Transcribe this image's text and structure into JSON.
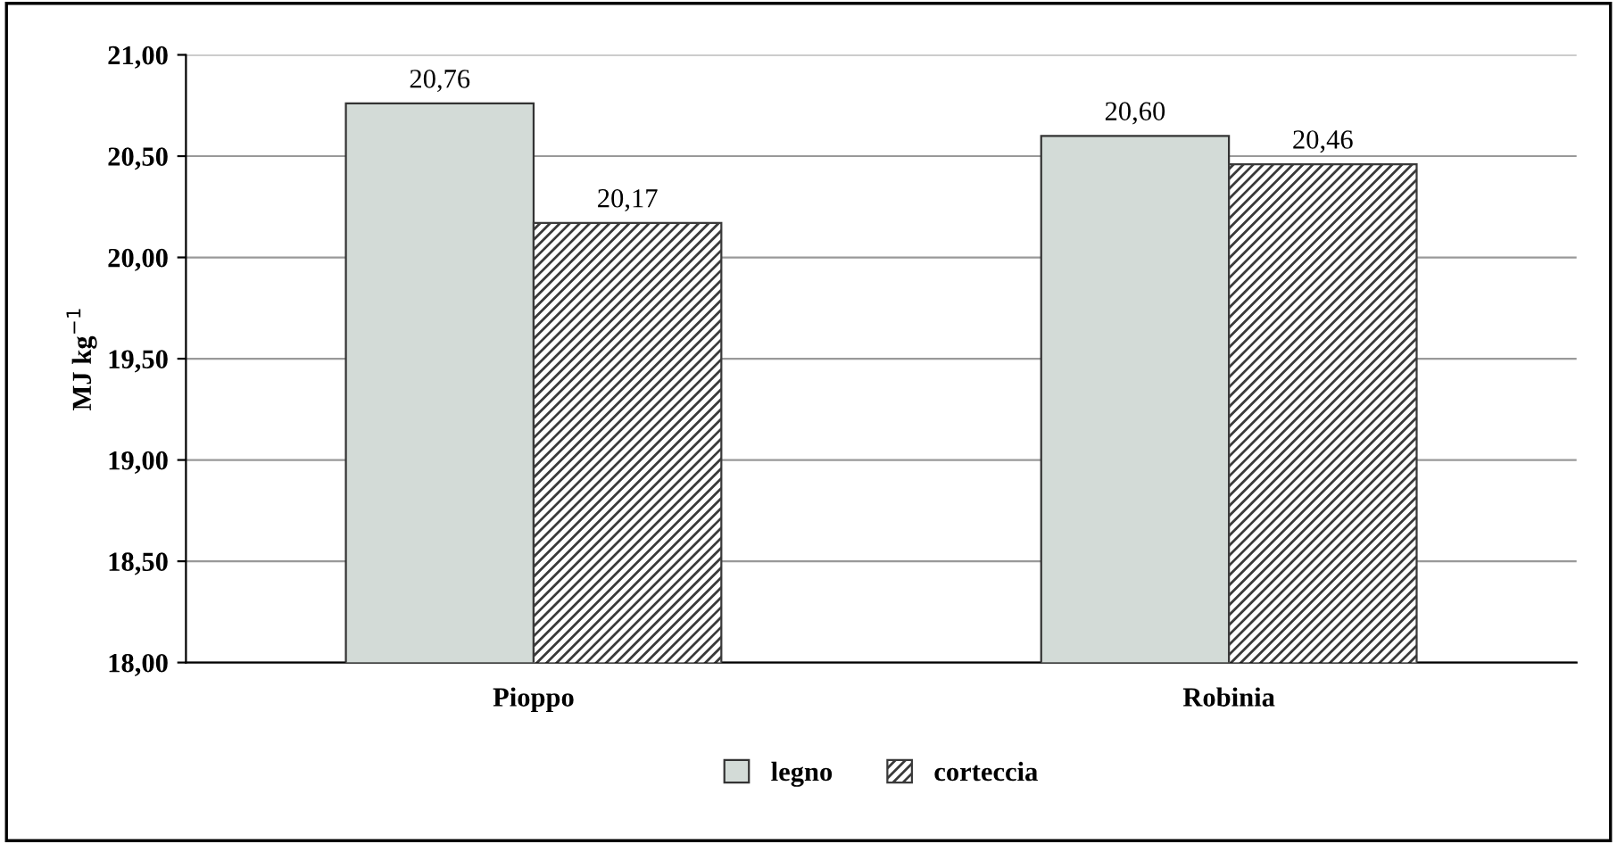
{
  "chart_data": {
    "type": "bar",
    "ylabel": "MJ kg$^{−1}$",
    "categories": [
      "Pioppo",
      "Robinia"
    ],
    "series": [
      {
        "name": "legno",
        "color": "#d3dbd7",
        "values": [
          20.76,
          20.6
        ],
        "value_labels": [
          "20,76",
          "20,60"
        ]
      },
      {
        "name": "corteccia",
        "color": "#3a3a3a",
        "values": [
          20.17,
          20.46
        ],
        "value_labels": [
          "20,17",
          "20,46"
        ]
      }
    ],
    "ylim": [
      18,
      21
    ],
    "yticks": [
      {
        "value": 18,
        "label": "18,00"
      },
      {
        "value": 18.5,
        "label": "18,50"
      },
      {
        "value": 19,
        "label": "19,00"
      },
      {
        "value": 19.5,
        "label": "19,50"
      },
      {
        "value": 20,
        "label": "20,00"
      },
      {
        "value": 20.5,
        "label": "20,50"
      },
      {
        "value": 21,
        "label": "21,00"
      }
    ],
    "grid": "y",
    "legend": "bottom"
  }
}
